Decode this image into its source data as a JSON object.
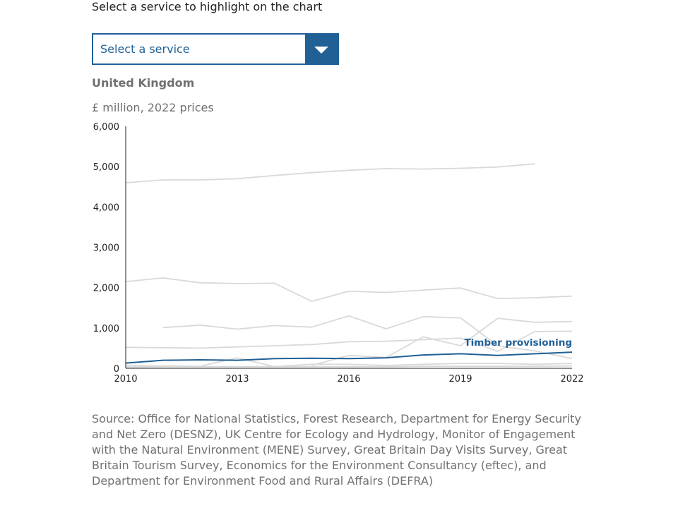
{
  "prompt": "Select a service to highlight on the chart",
  "service_select": {
    "value": "Select a service"
  },
  "colors": {
    "accent": "#206095",
    "muted": "#d9d9d9",
    "text_muted": "#707070"
  },
  "icons": {
    "dropdown": "chevron-down-icon"
  },
  "chart_data": {
    "type": "line",
    "title": "United Kingdom",
    "subtitle": "£ million, 2022 prices",
    "xlabel": "",
    "ylabel": "",
    "xlim": [
      2010,
      2022
    ],
    "ylim": [
      0,
      6000
    ],
    "xticks": [
      2010,
      2013,
      2016,
      2019,
      2022
    ],
    "yticks": [
      0,
      1000,
      2000,
      3000,
      4000,
      5000,
      6000
    ],
    "ytick_labels": [
      "0",
      "1,000",
      "2,000",
      "3,000",
      "4,000",
      "5,000",
      "6,000"
    ],
    "grid": false,
    "highlight_label": "Timber provisioning",
    "series": [
      {
        "x": [
          2010,
          2011,
          2012,
          2013,
          2014,
          2015,
          2016,
          2017,
          2018,
          2019,
          2020,
          2021
        ],
        "values": [
          4600,
          4670,
          4670,
          4700,
          4780,
          4850,
          4910,
          4950,
          4940,
          4960,
          4990,
          5070
        ],
        "highlight": false
      },
      {
        "x": [
          2010,
          2011,
          2012,
          2013,
          2014,
          2015,
          2016,
          2017,
          2018,
          2019,
          2020,
          2021,
          2022
        ],
        "values": [
          2150,
          2240,
          2120,
          2100,
          2110,
          1660,
          1910,
          1880,
          1940,
          1990,
          1730,
          1750,
          1790
        ],
        "highlight": false
      },
      {
        "x": [
          2011,
          2012,
          2013,
          2014,
          2015,
          2016,
          2017,
          2018,
          2019,
          2020,
          2021,
          2022
        ],
        "values": [
          1010,
          1070,
          970,
          1060,
          1020,
          1300,
          980,
          1280,
          1250,
          560,
          430,
          240
        ],
        "highlight": false
      },
      {
        "x": [
          2015,
          2016,
          2017,
          2018,
          2019,
          2020,
          2021,
          2022
        ],
        "values": [
          70,
          320,
          270,
          780,
          560,
          1240,
          1140,
          1160
        ],
        "highlight": false
      },
      {
        "x": [
          2010,
          2011,
          2012,
          2013,
          2014,
          2015,
          2016,
          2017,
          2018,
          2019,
          2020,
          2021,
          2022
        ],
        "values": [
          520,
          510,
          500,
          530,
          560,
          590,
          660,
          670,
          710,
          750,
          420,
          910,
          920
        ],
        "highlight": false
      },
      {
        "x": [
          2010,
          2011,
          2012,
          2013,
          2014,
          2015,
          2016,
          2017,
          2018,
          2019,
          2020,
          2021,
          2022
        ],
        "values": [
          70,
          60,
          50,
          260,
          40,
          100,
          100,
          70,
          100,
          120,
          120,
          100,
          120
        ],
        "highlight": false
      },
      {
        "x": [
          2010,
          2011,
          2012,
          2013,
          2014,
          2015,
          2016,
          2017,
          2018,
          2019,
          2020,
          2021,
          2022
        ],
        "values": [
          30,
          40,
          40,
          40,
          40,
          40,
          40,
          40,
          50,
          50,
          50,
          50,
          60
        ],
        "highlight": false
      },
      {
        "x": [
          2010,
          2011,
          2012,
          2013,
          2014,
          2015,
          2016,
          2017,
          2018,
          2019,
          2020,
          2021,
          2022
        ],
        "values": [
          130,
          200,
          210,
          200,
          240,
          250,
          240,
          260,
          330,
          360,
          320,
          360,
          400
        ],
        "highlight": true
      }
    ]
  },
  "source": "Source: Office for National Statistics, Forest Research, Department for Energy Security and Net Zero (DESNZ), UK Centre for Ecology and Hydrology, Monitor of Engagement with the Natural Environment (MENE) Survey, Great Britain Day Visits Survey, Great Britain Tourism Survey, Economics for the Environment Consultancy (eftec), and Department for Environment Food and Rural Affairs (DEFRA)"
}
